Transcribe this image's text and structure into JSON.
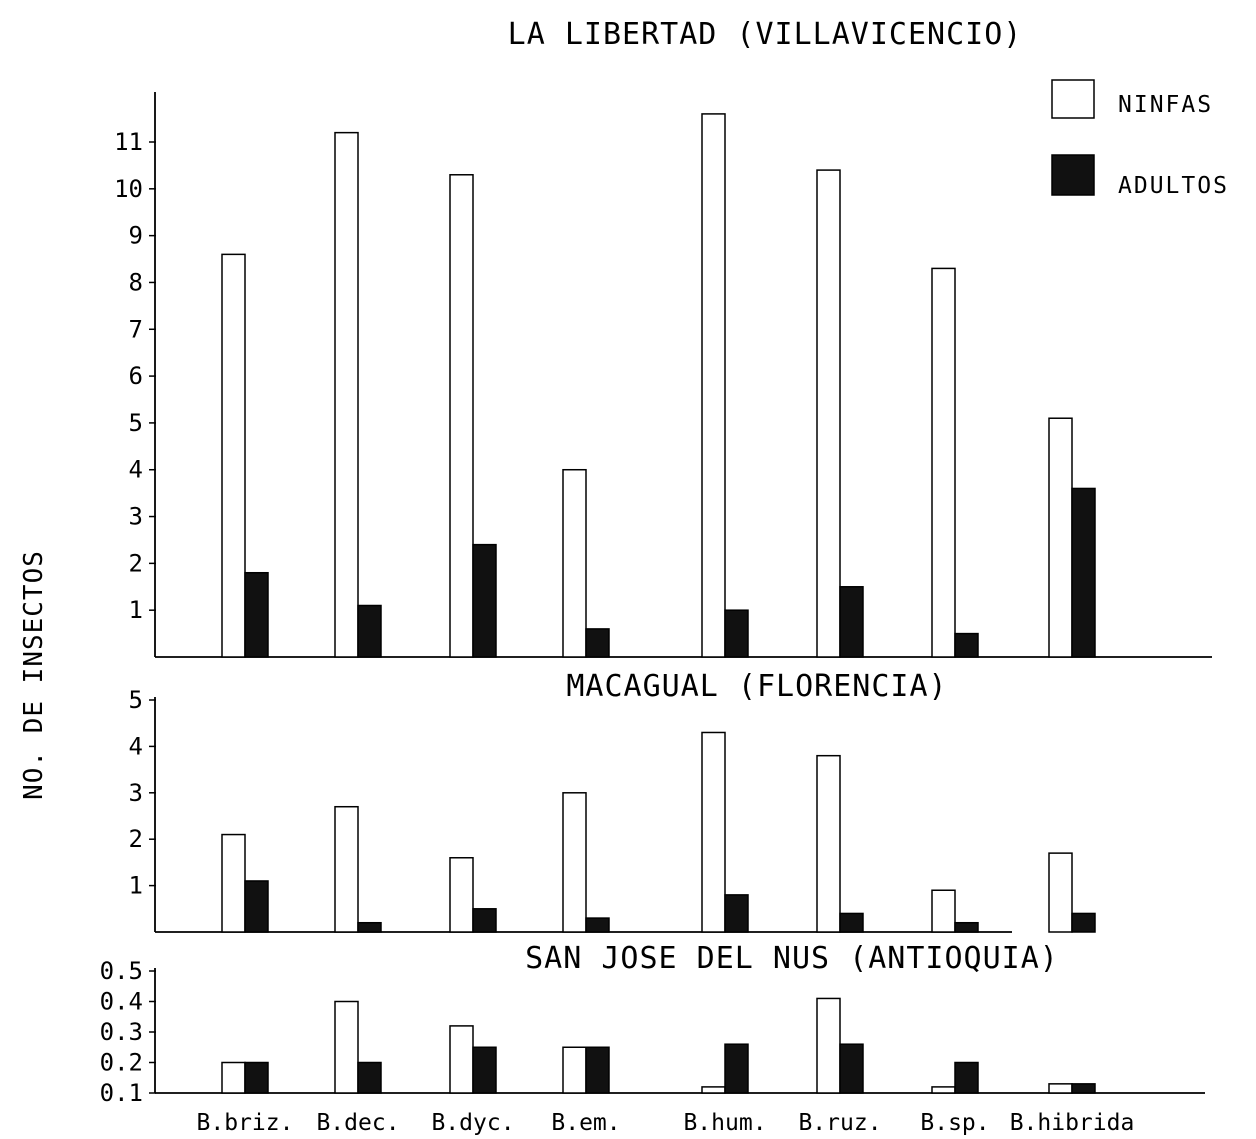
{
  "chart_data": [
    {
      "type": "bar",
      "title": "LA LIBERTAD (VILLAVICENCIO)",
      "categories": [
        "B.briz.",
        "B.dec.",
        "B.dyc.",
        "B.em.",
        "B.hum.",
        "B.ruz.",
        "B.sp.",
        "B.hibrida"
      ],
      "series": [
        {
          "name": "NINFAS",
          "values": [
            8.6,
            11.2,
            10.3,
            4.0,
            11.6,
            10.4,
            8.3,
            5.1
          ]
        },
        {
          "name": "ADULTOS",
          "values": [
            1.8,
            1.1,
            2.4,
            0.6,
            1.0,
            1.5,
            0.5,
            3.6
          ]
        }
      ],
      "ylim": [
        0,
        12
      ],
      "yticks": [
        "1",
        "2",
        "3",
        "4",
        "5",
        "6",
        "7",
        "8",
        "9",
        "10",
        "11"
      ],
      "legend": "top-right"
    },
    {
      "type": "bar",
      "title": "MACAGUAL (FLORENCIA)",
      "categories": [
        "B.briz.",
        "B.dec.",
        "B.dyc.",
        "B.em.",
        "B.hum.",
        "B.ruz.",
        "B.sp.",
        "B.hibrida"
      ],
      "series": [
        {
          "name": "NINFAS",
          "values": [
            2.1,
            2.7,
            1.6,
            3.0,
            4.3,
            3.8,
            0.9,
            1.7
          ]
        },
        {
          "name": "ADULTOS",
          "values": [
            1.1,
            0.2,
            0.5,
            0.3,
            0.8,
            0.4,
            0.2,
            0.4
          ]
        }
      ],
      "ylim": [
        0,
        5
      ],
      "yticks": [
        "1",
        "2",
        "3",
        "4",
        "5"
      ]
    },
    {
      "type": "bar",
      "title": "SAN JOSE DEL NUS (ANTIOQUIA)",
      "categories": [
        "B.briz.",
        "B.dec.",
        "B.dyc.",
        "B.em.",
        "B.hum.",
        "B.ruz.",
        "B.sp.",
        "B.hibrida"
      ],
      "series": [
        {
          "name": "NINFAS",
          "values": [
            0.2,
            0.4,
            0.32,
            0.25,
            0.12,
            0.41,
            0.12,
            0.13
          ]
        },
        {
          "name": "ADULTOS",
          "values": [
            0.2,
            0.2,
            0.25,
            0.25,
            0.26,
            0.26,
            0.2,
            0.13
          ]
        }
      ],
      "ylim": [
        0.1,
        0.5
      ],
      "yticks": [
        "0.1",
        "0.2",
        "0.3",
        "0.4",
        "0.5"
      ]
    }
  ],
  "ylabel": "NO. DE INSECTOS",
  "legend": {
    "ninfas_label": "NINFAS",
    "adultos_label": "ADULTOS"
  },
  "colors": {
    "ninfas": "#ffffff",
    "adultos": "#111111",
    "stroke": "#000000"
  }
}
